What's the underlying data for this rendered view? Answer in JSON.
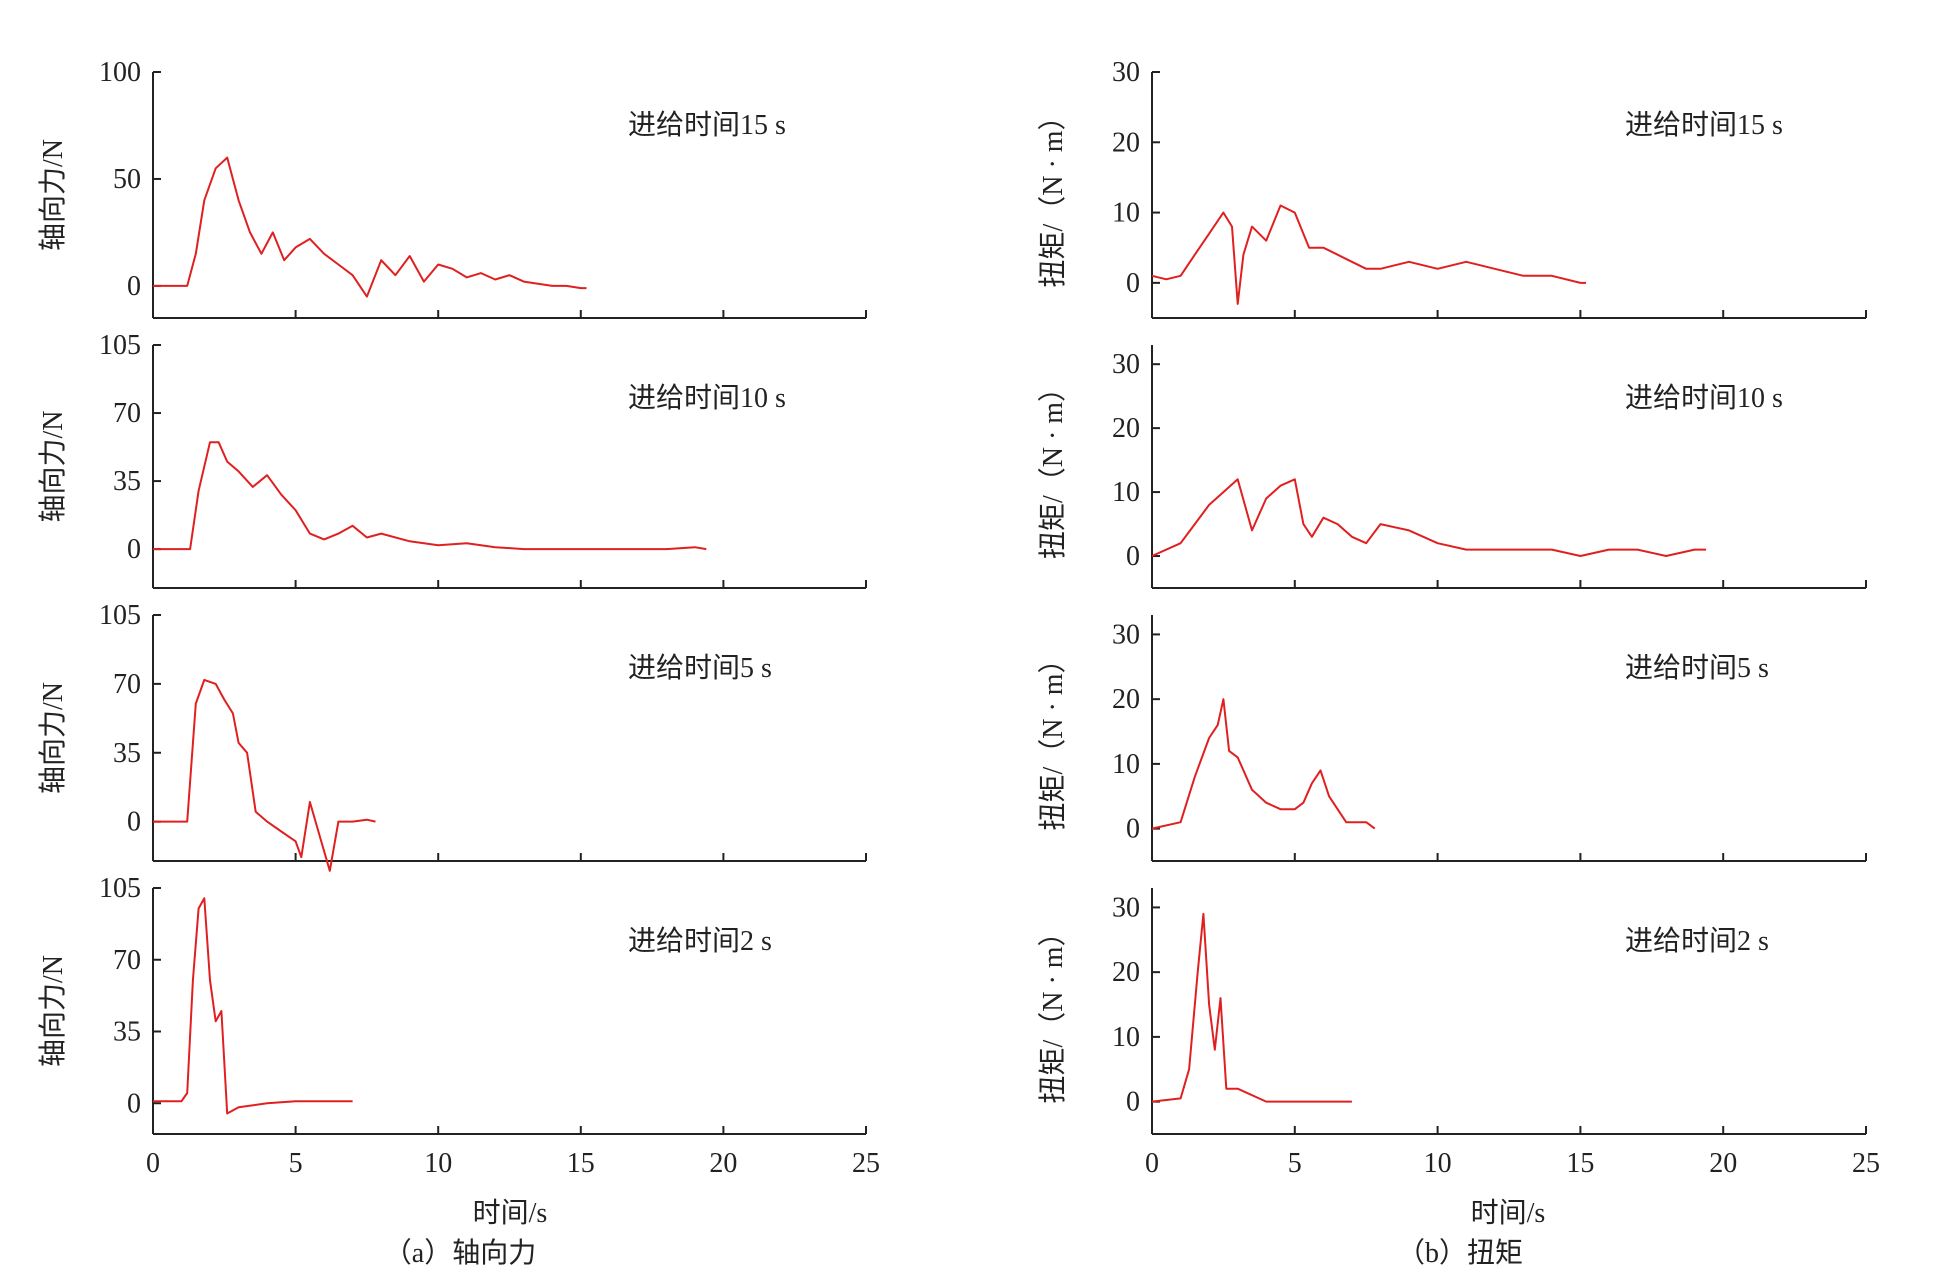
{
  "colors": {
    "series": "#e02020",
    "axis": "#222222"
  },
  "figure": {
    "caption_a": "（a）轴向力",
    "caption_b": "（b）扭矩"
  },
  "chart_data": [
    {
      "id": "axial_force",
      "type": "line",
      "xlabel": "时间/s",
      "ylabel": "轴向力/N",
      "xlim": [
        0,
        25
      ],
      "xticks": [
        0,
        5,
        10,
        15,
        20,
        25
      ],
      "grid": false,
      "panels": [
        {
          "annotation": "进给时间15 s",
          "ylim": [
            -15,
            100
          ],
          "yticks": [
            0,
            50,
            100
          ],
          "x": [
            0,
            1.2,
            1.5,
            1.8,
            2.2,
            2.6,
            3.0,
            3.4,
            3.8,
            4.2,
            4.6,
            5.0,
            5.5,
            6.0,
            6.5,
            7.0,
            7.5,
            8.0,
            8.5,
            9.0,
            9.5,
            10.0,
            10.5,
            11.0,
            11.5,
            12.0,
            12.5,
            13.0,
            13.5,
            14.0,
            14.5,
            15.0,
            15.2
          ],
          "y": [
            0,
            0,
            15,
            40,
            55,
            60,
            40,
            25,
            15,
            25,
            12,
            18,
            22,
            15,
            10,
            5,
            -5,
            12,
            5,
            14,
            2,
            10,
            8,
            4,
            6,
            3,
            5,
            2,
            1,
            0,
            0,
            -1,
            -1
          ]
        },
        {
          "annotation": "进给时间10 s",
          "ylim": [
            -20,
            105
          ],
          "yticks": [
            0,
            35,
            70,
            105
          ],
          "x": [
            0,
            1.3,
            1.6,
            2.0,
            2.3,
            2.6,
            3.0,
            3.5,
            4.0,
            4.5,
            5.0,
            5.5,
            6.0,
            6.5,
            7.0,
            7.5,
            8.0,
            9.0,
            10.0,
            11.0,
            12.0,
            13.0,
            14.0,
            15.0,
            16.0,
            17.0,
            18.0,
            19.0,
            19.4
          ],
          "y": [
            0,
            0,
            30,
            55,
            55,
            45,
            40,
            32,
            38,
            28,
            20,
            8,
            5,
            8,
            12,
            6,
            8,
            4,
            2,
            3,
            1,
            0,
            0,
            0,
            0,
            0,
            0,
            1,
            0
          ]
        },
        {
          "annotation": "进给时间5 s",
          "ylim": [
            -20,
            105
          ],
          "yticks": [
            0,
            35,
            70,
            105
          ],
          "x": [
            0,
            1.2,
            1.5,
            1.8,
            2.2,
            2.5,
            2.8,
            3.0,
            3.3,
            3.6,
            4.0,
            4.5,
            5.0,
            5.2,
            5.5,
            5.8,
            6.0,
            6.2,
            6.5,
            7.0,
            7.5,
            7.8
          ],
          "y": [
            0,
            0,
            60,
            72,
            70,
            62,
            55,
            40,
            35,
            5,
            0,
            -5,
            -10,
            -18,
            10,
            -5,
            -15,
            -25,
            0,
            0,
            1,
            0
          ]
        },
        {
          "annotation": "进给时间2 s",
          "ylim": [
            -15,
            105
          ],
          "yticks": [
            0,
            35,
            70,
            105
          ],
          "x": [
            0,
            1.0,
            1.2,
            1.4,
            1.6,
            1.8,
            2.0,
            2.2,
            2.4,
            2.6,
            3.0,
            4.0,
            5.0,
            6.0,
            7.0
          ],
          "y": [
            1,
            1,
            5,
            60,
            95,
            100,
            60,
            40,
            45,
            -5,
            -2,
            0,
            1,
            1,
            1
          ]
        }
      ]
    },
    {
      "id": "torque",
      "type": "line",
      "xlabel": "时间/s",
      "ylabel": "扭矩/（N · m）",
      "xlim": [
        0,
        25
      ],
      "xticks": [
        0,
        5,
        10,
        15,
        20,
        25
      ],
      "grid": false,
      "panels": [
        {
          "annotation": "进给时间15 s",
          "ylim": [
            -5,
            30
          ],
          "yticks": [
            0,
            10,
            20,
            30
          ],
          "x": [
            0,
            0.5,
            1.0,
            1.5,
            2.0,
            2.5,
            2.8,
            3.0,
            3.2,
            3.5,
            4.0,
            4.5,
            5.0,
            5.5,
            6.0,
            6.5,
            7.0,
            7.5,
            8.0,
            9.0,
            10.0,
            11.0,
            12.0,
            13.0,
            14.0,
            15.0,
            15.2
          ],
          "y": [
            1,
            0.5,
            1,
            4,
            7,
            10,
            8,
            -3,
            4,
            8,
            6,
            11,
            10,
            5,
            5,
            4,
            3,
            2,
            2,
            3,
            2,
            3,
            2,
            1,
            1,
            0,
            0
          ]
        },
        {
          "annotation": "进给时间10 s",
          "ylim": [
            -5,
            33
          ],
          "yticks": [
            0,
            10,
            20,
            30
          ],
          "x": [
            0,
            1.0,
            1.5,
            2.0,
            2.5,
            3.0,
            3.5,
            4.0,
            4.5,
            5.0,
            5.3,
            5.6,
            6.0,
            6.5,
            7.0,
            7.5,
            8.0,
            9.0,
            10.0,
            11.0,
            12.0,
            13.0,
            14.0,
            15.0,
            16.0,
            17.0,
            18.0,
            19.0,
            19.4
          ],
          "y": [
            0,
            2,
            5,
            8,
            10,
            12,
            4,
            9,
            11,
            12,
            5,
            3,
            6,
            5,
            3,
            2,
            5,
            4,
            2,
            1,
            1,
            1,
            1,
            0,
            1,
            1,
            0,
            1,
            1
          ]
        },
        {
          "annotation": "进给时间5 s",
          "ylim": [
            -5,
            33
          ],
          "yticks": [
            0,
            10,
            20,
            30
          ],
          "x": [
            0,
            1.0,
            1.5,
            2.0,
            2.3,
            2.5,
            2.7,
            3.0,
            3.5,
            4.0,
            4.5,
            5.0,
            5.3,
            5.6,
            5.9,
            6.2,
            6.5,
            6.8,
            7.0,
            7.5,
            7.8
          ],
          "y": [
            0,
            1,
            8,
            14,
            16,
            20,
            12,
            11,
            6,
            4,
            3,
            3,
            4,
            7,
            9,
            5,
            3,
            1,
            1,
            1,
            0
          ]
        },
        {
          "annotation": "进给时间2 s",
          "ylim": [
            -5,
            33
          ],
          "yticks": [
            0,
            10,
            20,
            30
          ],
          "x": [
            0,
            1.0,
            1.3,
            1.6,
            1.8,
            2.0,
            2.2,
            2.4,
            2.6,
            3.0,
            4.0,
            5.0,
            6.0,
            7.0
          ],
          "y": [
            0,
            0.5,
            5,
            20,
            29,
            15,
            8,
            16,
            2,
            2,
            0,
            0,
            0,
            0
          ]
        }
      ]
    }
  ]
}
